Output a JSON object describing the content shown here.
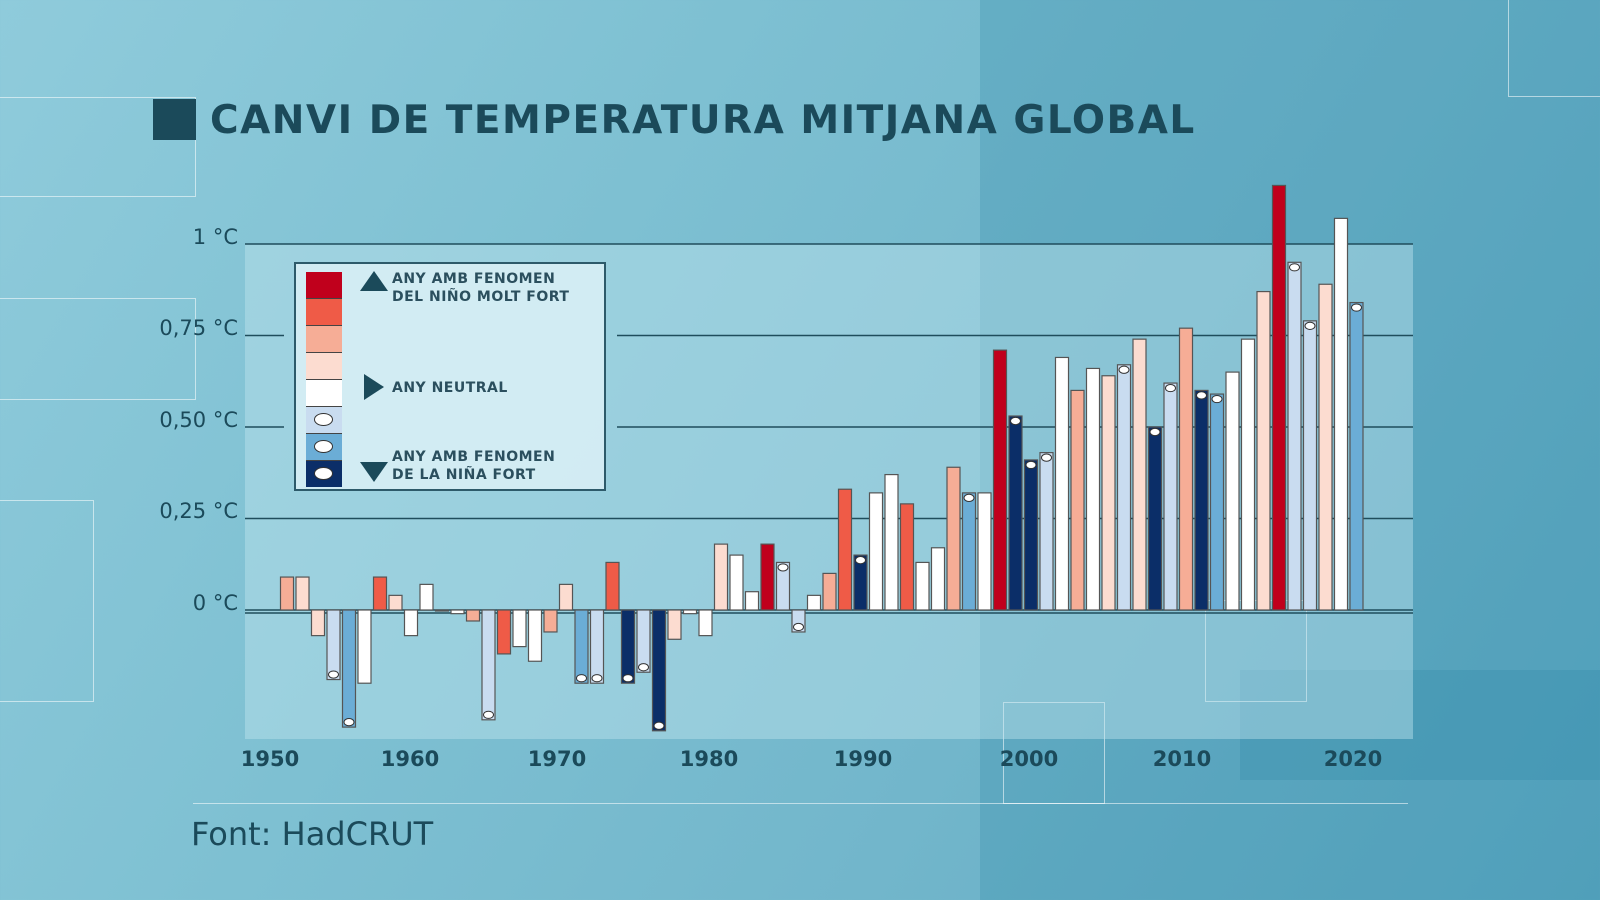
{
  "title": "CANVI DE TEMPERATURA MITJANA GLOBAL",
  "source": "Font: HadCRUT",
  "colors": {
    "R3": "#c0001c",
    "R2": "#ef5b47",
    "R1": "#f6ad96",
    "R0": "#fcdcd0",
    "N": "#ffffff",
    "L1": "#c9dcf0",
    "L2": "#6badd6",
    "L3": "#0b2e68",
    "text": "#1b4a5a"
  },
  "legend": {
    "nino_strong": "ANY AMB FENOMEN DEL NIÑO MOLT FORT",
    "nino_line1": "ANY AMB FENOMEN",
    "nino_line2": "DEL NIÑO MOLT FORT",
    "neutral": "ANY NEUTRAL",
    "nina_line1": "ANY AMB FENOMEN",
    "nina_line2": "DE LA NIÑA FORT",
    "swatches": [
      "R3",
      "R2",
      "R1",
      "R0",
      "N",
      "L1",
      "L2",
      "L3"
    ]
  },
  "chart_data": {
    "type": "bar",
    "title": "CANVI DE TEMPERATURA MITJANA GLOBAL",
    "ylabel": "",
    "xlabel": "",
    "ylim": [
      -0.35,
      1.2
    ],
    "yticks": [
      0,
      0.25,
      0.5,
      0.75,
      1.0
    ],
    "ytick_labels": [
      "0 °C",
      "0,25 °C",
      "0,50 °C",
      "0,75 °C",
      "1 °C"
    ],
    "xtick_labels": [
      "1950",
      "1960",
      "1970",
      "1980",
      "1990",
      "2000",
      "2010",
      "2020"
    ],
    "grid": true,
    "legend_position": "top-left",
    "years": [
      1951,
      1952,
      1953,
      1954,
      1955,
      1956,
      1957,
      1958,
      1959,
      1960,
      1961,
      1962,
      1963,
      1964,
      1965,
      1966,
      1967,
      1968,
      1969,
      1970,
      1971,
      1972,
      1973,
      1974,
      1975,
      1976,
      1977,
      1978,
      1979,
      1980,
      1981,
      1982,
      1983,
      1984,
      1985,
      1986,
      1987,
      1988,
      1989,
      1990,
      1991,
      1992,
      1993,
      1994,
      1995,
      1996,
      1997,
      1998,
      1999,
      2000,
      2001,
      2002,
      2003,
      2004,
      2005,
      2006,
      2007,
      2008,
      2009,
      2010,
      2011,
      2012,
      2013,
      2014,
      2015,
      2016,
      2017,
      2018,
      2019,
      2020
    ],
    "values": [
      0.09,
      0.09,
      -0.07,
      -0.19,
      -0.32,
      -0.2,
      0.09,
      0.04,
      -0.07,
      0.07,
      0.0,
      -0.01,
      -0.03,
      -0.3,
      -0.12,
      -0.1,
      -0.14,
      -0.06,
      0.07,
      -0.2,
      -0.2,
      0.13,
      -0.2,
      -0.17,
      -0.33,
      -0.08,
      -0.01,
      -0.07,
      0.18,
      0.15,
      0.05,
      0.18,
      0.13,
      -0.06,
      0.04,
      0.1,
      0.33,
      0.15,
      0.32,
      0.37,
      0.29,
      0.13,
      0.17,
      0.39,
      0.32,
      0.32,
      0.71,
      0.53,
      0.41,
      0.43,
      0.69,
      0.6,
      0.66,
      0.64,
      0.67,
      0.74,
      0.5,
      0.62,
      0.77,
      0.6,
      0.59,
      0.65,
      0.74,
      0.87,
      1.16,
      0.95,
      0.79,
      0.89,
      1.07,
      0.84
    ],
    "categories": [
      "R1",
      "R0",
      "R0",
      "L1",
      "L2",
      "N",
      "R2",
      "R0",
      "N",
      "N",
      "N",
      "N",
      "R1",
      "L1",
      "R2",
      "N",
      "N",
      "R1",
      "R0",
      "L2",
      "L1",
      "R2",
      "L3",
      "L1",
      "L3",
      "R0",
      "N",
      "N",
      "R0",
      "N",
      "N",
      "R3",
      "L1",
      "L1",
      "N",
      "R1",
      "R2",
      "L3",
      "N",
      "N",
      "R2",
      "N",
      "N",
      "R1",
      "L2",
      "N",
      "R3",
      "L3",
      "L3",
      "L1",
      "N",
      "R1",
      "N",
      "R0",
      "L1",
      "R0",
      "L3",
      "L1",
      "R1",
      "L3",
      "L2",
      "N",
      "N",
      "R0",
      "R3",
      "L1",
      "L1",
      "R0",
      "N",
      "L2"
    ]
  }
}
